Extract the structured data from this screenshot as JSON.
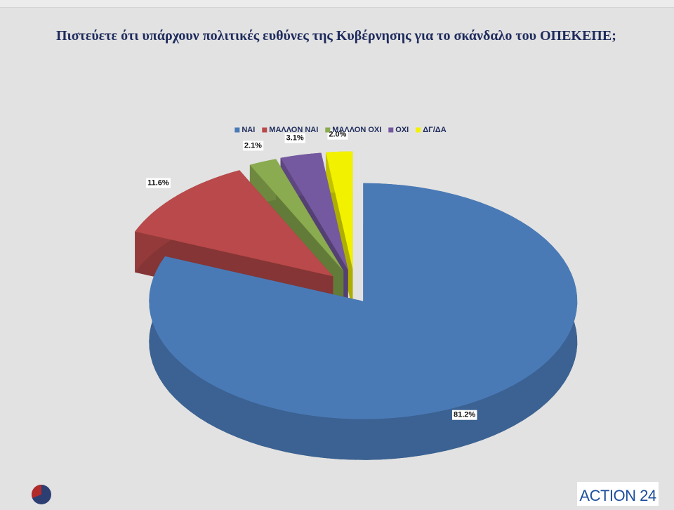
{
  "chart_data": {
    "type": "pie3d",
    "title": "Πιστεύετε ότι υπάρχουν πολιτικές ευθύνες της Κυβέρνησης για το σκάνδαλο του ΟΠΕΚΕΠΕ;",
    "categories": [
      "ΝΑΙ",
      "ΜΑΛΛΟΝ ΝΑΙ",
      "ΜΑΛΛΟΝ ΟΧΙ",
      "ΟΧΙ",
      "ΔΓ/ΔΑ"
    ],
    "values": [
      81.2,
      11.6,
      2.1,
      3.1,
      2.0
    ],
    "value_labels": [
      "81.2%",
      "11.6%",
      "2.1%",
      "3.1%",
      "2.0%"
    ],
    "colors": [
      "#4a7ab6",
      "#b9494a",
      "#8aab4f",
      "#7559a0",
      "#f2f200"
    ],
    "legend": "top"
  },
  "logo": "ACTION 24"
}
